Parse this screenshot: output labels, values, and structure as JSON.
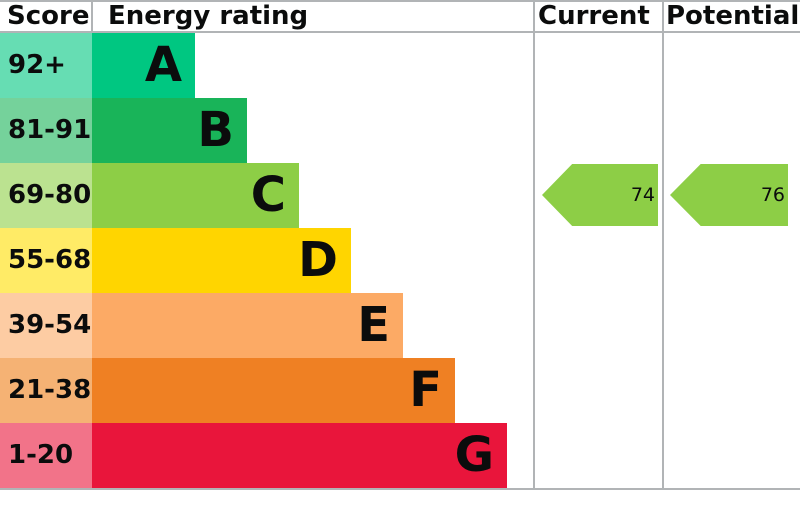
{
  "header": {
    "score_label": "Score",
    "energy_rating_label": "Energy rating",
    "current_label": "Current",
    "potential_label": "Potential"
  },
  "bands": [
    {
      "letter": "A",
      "range": "92+",
      "color": "#00c781",
      "tint": "#66ddb3"
    },
    {
      "letter": "B",
      "range": "81-91",
      "color": "#19b459",
      "tint": "#75d29b"
    },
    {
      "letter": "C",
      "range": "69-80",
      "color": "#8dce46",
      "tint": "#bbe290"
    },
    {
      "letter": "D",
      "range": "55-68",
      "color": "#ffd500",
      "tint": "#ffeb66"
    },
    {
      "letter": "E",
      "range": "39-54",
      "color": "#fcaa65",
      "tint": "#fdcca3"
    },
    {
      "letter": "F",
      "range": "21-38",
      "color": "#ef8023",
      "tint": "#f5b274"
    },
    {
      "letter": "G",
      "range": "1-20",
      "color": "#e9153b",
      "tint": "#f27389"
    }
  ],
  "chart_data": {
    "type": "bar",
    "title": "Energy rating",
    "categories": [
      "A",
      "B",
      "C",
      "D",
      "E",
      "F",
      "G"
    ],
    "score_ranges": [
      "92+",
      "81-91",
      "69-80",
      "55-68",
      "39-54",
      "21-38",
      "1-20"
    ],
    "band_colors": [
      "#00c781",
      "#19b459",
      "#8dce46",
      "#ffd500",
      "#fcaa65",
      "#ef8023",
      "#e9153b"
    ],
    "score_cell_tints": [
      "#66ddb3",
      "#75d29b",
      "#bbe290",
      "#ffeb66",
      "#fdcca3",
      "#f5b274",
      "#f27389"
    ],
    "bar_relative_widths": [
      0.25,
      0.37,
      0.5,
      0.62,
      0.75,
      0.87,
      1.0
    ],
    "columns": [
      "Score",
      "Energy rating",
      "Current",
      "Potential"
    ],
    "markers": [
      {
        "label": "Current",
        "value": 74,
        "band": "C",
        "color": "#8dce46"
      },
      {
        "label": "Potential",
        "value": 76,
        "band": "C",
        "color": "#8dce46"
      }
    ],
    "grid_color": "#b1b4b6",
    "legend_position": "none"
  }
}
